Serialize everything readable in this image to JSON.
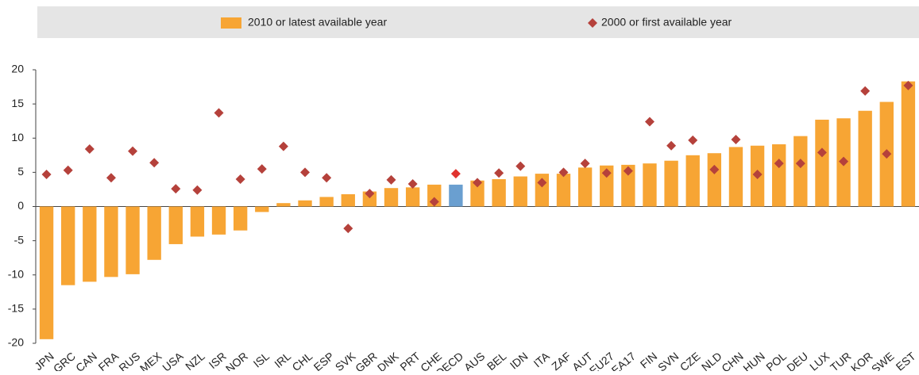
{
  "chart_data": {
    "type": "bar",
    "categories": [
      "JPN",
      "GRC",
      "CAN",
      "FRA",
      "RUS",
      "MEX",
      "USA",
      "NZL",
      "ISR",
      "NOR",
      "ISL",
      "IRL",
      "CHL",
      "ESP",
      "SVK",
      "GBR",
      "DNK",
      "PRT",
      "CHE",
      "OECD",
      "AUS",
      "BEL",
      "IDN",
      "ITA",
      "ZAF",
      "AUT",
      "EU27",
      "EA17",
      "FIN",
      "SVN",
      "CZE",
      "NLD",
      "CHN",
      "HUN",
      "POL",
      "DEU",
      "LUX",
      "TUR",
      "KOR",
      "SWE",
      "EST"
    ],
    "series": [
      {
        "name": "2010 or latest available year",
        "type": "bar",
        "color": "#f7a534",
        "colors": [
          "#f7a534",
          "#f7a534",
          "#f7a534",
          "#f7a534",
          "#f7a534",
          "#f7a534",
          "#f7a534",
          "#f7a534",
          "#f7a534",
          "#f7a534",
          "#f7a534",
          "#f7a534",
          "#f7a534",
          "#f7a534",
          "#f7a534",
          "#f7a534",
          "#f7a534",
          "#f7a534",
          "#f7a534",
          "#6a9fd0",
          "#f7a534",
          "#f7a534",
          "#f7a534",
          "#f7a534",
          "#f7a534",
          "#f7a534",
          "#f7a534",
          "#f7a534",
          "#f7a534",
          "#f7a534",
          "#f7a534",
          "#f7a534",
          "#f7a534",
          "#f7a534",
          "#f7a534",
          "#f7a534",
          "#f7a534",
          "#f7a534",
          "#f7a534",
          "#f7a534",
          "#f7a534"
        ],
        "values": [
          -19.4,
          -11.5,
          -11,
          -10.3,
          -9.9,
          -7.8,
          -5.5,
          -4.4,
          -4.1,
          -3.5,
          -0.8,
          0.5,
          0.9,
          1.4,
          1.8,
          2.2,
          2.7,
          2.8,
          3.2,
          3.2,
          3.8,
          4.0,
          4.4,
          4.8,
          4.8,
          5.7,
          6.0,
          6.1,
          6.3,
          6.7,
          7.5,
          7.8,
          8.7,
          8.9,
          9.1,
          10.3,
          12.7,
          12.9,
          14.0,
          15.3,
          18.3
        ]
      },
      {
        "name": "2000 or first available year",
        "type": "diamond",
        "color": "#b5413b",
        "colors": [
          "#b5413b",
          "#b5413b",
          "#b5413b",
          "#b5413b",
          "#b5413b",
          "#b5413b",
          "#b5413b",
          "#b5413b",
          "#b5413b",
          "#b5413b",
          "#b5413b",
          "#b5413b",
          "#b5413b",
          "#b5413b",
          "#b5413b",
          "#b5413b",
          "#b5413b",
          "#b5413b",
          "#b5413b",
          "#e0332e",
          "#b5413b",
          "#b5413b",
          "#b5413b",
          "#b5413b",
          "#b5413b",
          "#b5413b",
          "#b5413b",
          "#b5413b",
          "#b5413b",
          "#b5413b",
          "#b5413b",
          "#b5413b",
          "#b5413b",
          "#b5413b",
          "#b5413b",
          "#b5413b",
          "#b5413b",
          "#b5413b",
          "#b5413b",
          "#b5413b",
          "#b5413b"
        ],
        "values": [
          4.7,
          5.3,
          8.4,
          4.2,
          8.1,
          6.4,
          2.6,
          2.4,
          13.7,
          4.0,
          5.5,
          8.8,
          5.0,
          4.2,
          -3.2,
          1.9,
          3.9,
          3.3,
          0.7,
          4.8,
          3.5,
          4.9,
          5.9,
          3.5,
          5.0,
          6.3,
          4.9,
          5.2,
          12.4,
          8.9,
          9.7,
          5.4,
          9.8,
          4.7,
          6.3,
          6.3,
          7.9,
          6.6,
          16.9,
          7.7,
          17.7
        ]
      }
    ],
    "ylim": [
      -20,
      20
    ],
    "yticks": [
      -20,
      -15,
      -10,
      -5,
      0,
      5,
      10,
      15,
      20
    ],
    "grid": false
  }
}
